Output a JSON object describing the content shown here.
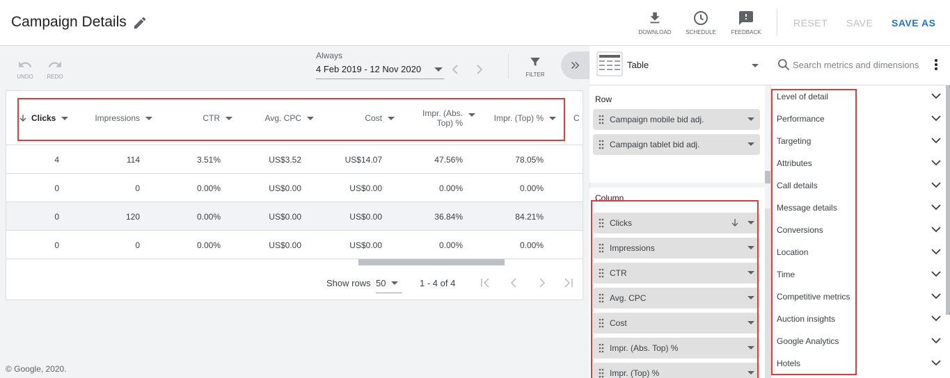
{
  "header": {
    "title": "Campaign Details",
    "download_label": "DOWNLOAD",
    "schedule_label": "SCHEDULE",
    "feedback_label": "FEEDBACK",
    "reset_label": "RESET",
    "save_label": "SAVE",
    "save_as_label": "SAVE AS",
    "accent": "#1a73e8"
  },
  "toolbar": {
    "undo_label": "UNDO",
    "redo_label": "REDO",
    "date_label": "Always",
    "date_range": "4 Feb 2019 - 12 Nov 2020",
    "filter_label": "FILTER"
  },
  "table": {
    "columns": [
      "Clicks",
      "Impressions",
      "CTR",
      "Avg. CPC",
      "Cost",
      "Impr. (Abs. Top) %",
      "Impr. (Top) %",
      "C"
    ],
    "sorted_column": "Clicks",
    "rows": [
      [
        "4",
        "114",
        "3.51%",
        "US$3.52",
        "US$14.07",
        "47.56%",
        "78.05%"
      ],
      [
        "0",
        "0",
        "0.00%",
        "US$0.00",
        "US$0.00",
        "0.00%",
        "0.00%"
      ],
      [
        "0",
        "120",
        "0.00%",
        "US$0.00",
        "US$0.00",
        "36.84%",
        "84.21%"
      ],
      [
        "0",
        "0",
        "0.00%",
        "US$0.00",
        "US$0.00",
        "0.00%",
        "0.00%"
      ]
    ],
    "show_rows_label": "Show rows",
    "show_rows_value": "50",
    "pagination": "1 - 4 of 4"
  },
  "copyright": "© Google, 2020.",
  "editor": {
    "chart_type": "Table",
    "row_label": "Row",
    "row_items": [
      "Campaign mobile bid adj.",
      "Campaign tablet bid adj."
    ],
    "column_label": "Column",
    "column_items": [
      "Clicks",
      "Impressions",
      "CTR",
      "Avg. CPC",
      "Cost",
      "Impr. (Abs. Top) %",
      "Impr. (Top) %"
    ]
  },
  "metrics": {
    "search_placeholder": "Search metrics and dimensions",
    "categories": [
      "Level of detail",
      "Performance",
      "Targeting",
      "Attributes",
      "Call details",
      "Message details",
      "Conversions",
      "Location",
      "Time",
      "Competitive metrics",
      "Auction insights",
      "Google Analytics",
      "Hotels"
    ]
  }
}
